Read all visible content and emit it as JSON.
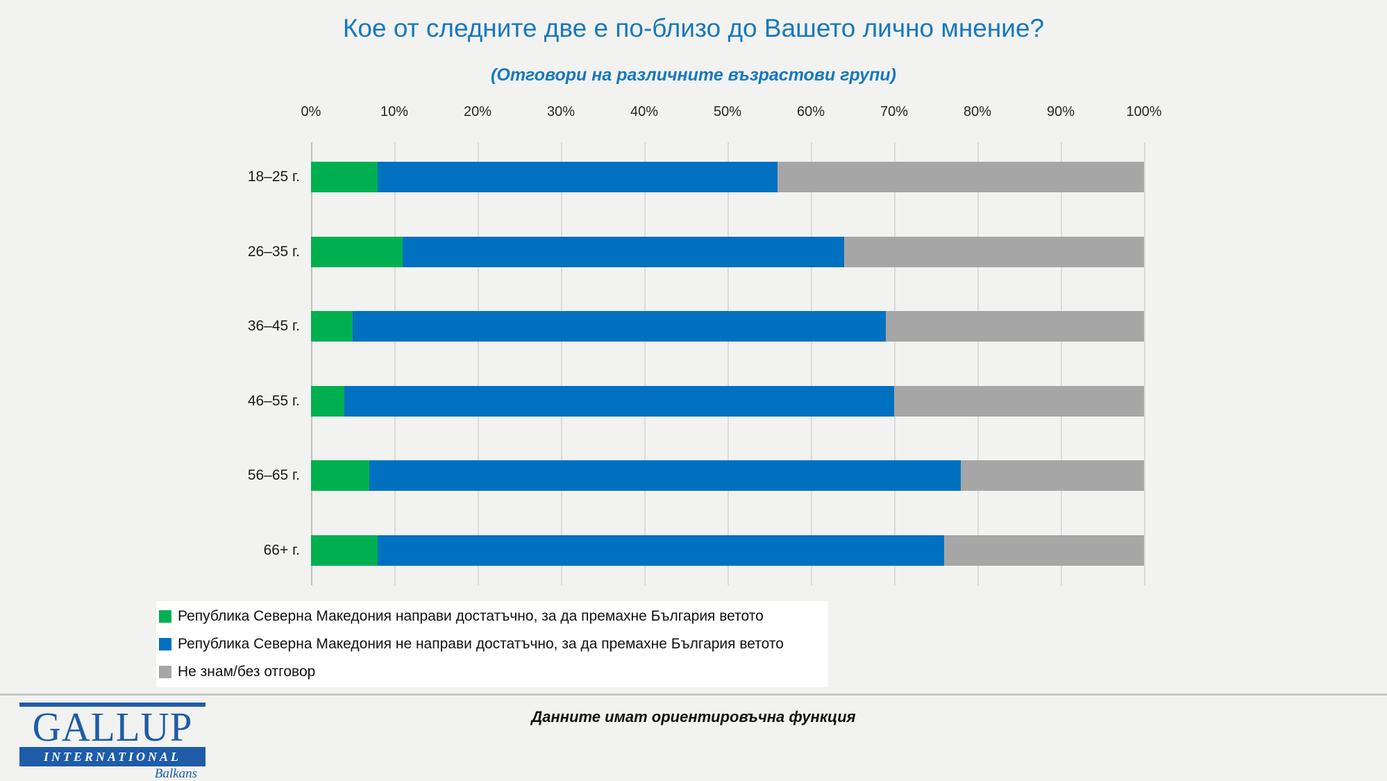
{
  "title": "Кое от следните две е по-близо до Вашето лично мнение?",
  "subtitle": "(Отговори на различните възрастови групи)",
  "footer": {
    "note": "Данните имат ориентировъчна функция"
  },
  "logo": {
    "line1": "GALLUP",
    "line2": "INTERNATIONAL",
    "line3": "Balkans"
  },
  "colors": {
    "green": "#00B050",
    "blue": "#0070C0",
    "gray": "#A6A6A6",
    "title_blue": "#1778BE",
    "logo_blue": "#1E5CA8",
    "grid": "#DBDBDB",
    "axis": "#C0C0C0",
    "background": "#F2F2F0",
    "legend_bg": "#FFFFFF",
    "divider": "#C6C6C4",
    "text": "#000000"
  },
  "chart_data": {
    "type": "bar",
    "orientation": "horizontal-stacked",
    "title": "Кое от следните две е по-близо до Вашето лично мнение?",
    "subtitle": "(Отговори на различните възрастови групи)",
    "categories": [
      "18–25 г.",
      "26–35 г.",
      "36–45 г.",
      "46–55 г.",
      "56–65 г.",
      "66+ г."
    ],
    "x_ticks": [
      "0%",
      "10%",
      "20%",
      "30%",
      "40%",
      "50%",
      "60%",
      "70%",
      "80%",
      "90%",
      "100%"
    ],
    "xlim": [
      0,
      100
    ],
    "grid": true,
    "legend_position": "bottom-left",
    "series": [
      {
        "name": "Република Северна Македония направи достатъчно, за да премахне България ветото",
        "color_key": "green",
        "values": [
          8,
          11,
          5,
          4,
          7,
          8
        ]
      },
      {
        "name": "Република Северна Македония не направи достатъчно, за да премахне България ветото",
        "color_key": "blue",
        "values": [
          48,
          53,
          64,
          66,
          71,
          68
        ]
      },
      {
        "name": "Не знам/без отговор",
        "color_key": "gray",
        "values": [
          44,
          36,
          31,
          30,
          22,
          24
        ]
      }
    ]
  }
}
